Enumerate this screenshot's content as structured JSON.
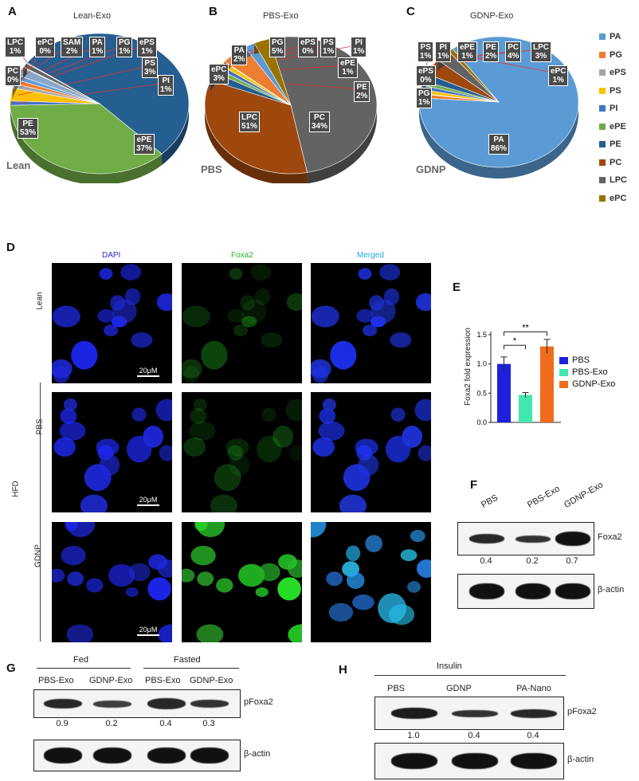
{
  "panels": {
    "A": {
      "letter": "A",
      "title": "Lean-Exo",
      "corner": "Lean"
    },
    "B": {
      "letter": "B",
      "title": "PBS-Exo",
      "corner": "PBS"
    },
    "C": {
      "letter": "C",
      "title": "GDNP-Exo",
      "corner": "GDNP"
    },
    "D": {
      "letter": "D",
      "channels": [
        "DAPI",
        "Foxa2",
        "Merged"
      ],
      "rows": [
        "Lean",
        "PBS",
        "GDNP"
      ],
      "group": "HFD",
      "scale": "20μM"
    },
    "E": {
      "letter": "E",
      "ylabel": "Foxa2 fold expression",
      "sig1": "*",
      "sig2": "**"
    },
    "F": {
      "letter": "F",
      "lanes": [
        "PBS",
        "PBS-Exo",
        "GDNP-Exo"
      ],
      "target": "Foxa2",
      "values": [
        "0.4",
        "0.2",
        "0.7"
      ],
      "control": "β-actin"
    },
    "G": {
      "letter": "G",
      "groups": [
        "Fed",
        "Fasted"
      ],
      "lanes": [
        "PBS-Exo",
        "GDNP-Exo",
        "PBS-Exo",
        "GDNP-Exo"
      ],
      "target": "pFoxa2",
      "values": [
        "0.9",
        "0.2",
        "0.4",
        "0.3"
      ],
      "control": "β-actin"
    },
    "H": {
      "letter": "H",
      "group": "Insulin",
      "lanes": [
        "PBS",
        "GDNP",
        "PA-Nano"
      ],
      "target": "pFoxa2",
      "values": [
        "1.0",
        "0.4",
        "0.4"
      ],
      "control": "β-actin"
    }
  },
  "pie_legend": [
    {
      "label": "PA",
      "color": "#5b9bd5"
    },
    {
      "label": "PG",
      "color": "#ed7d31"
    },
    {
      "label": "ePS",
      "color": "#a5a5a5"
    },
    {
      "label": "PS",
      "color": "#ffc000"
    },
    {
      "label": "PI",
      "color": "#4472c4"
    },
    {
      "label": "ePE",
      "color": "#70ad47"
    },
    {
      "label": "PE",
      "color": "#255e91"
    },
    {
      "label": "PC",
      "color": "#9e480e"
    },
    {
      "label": "LPC",
      "color": "#636363"
    },
    {
      "label": "ePC",
      "color": "#997300"
    }
  ],
  "chart_data": [
    {
      "type": "pie",
      "title": "Lean-Exo",
      "slices": [
        {
          "label": "PE",
          "value": 53,
          "text": "53%"
        },
        {
          "label": "ePE",
          "value": 37,
          "text": "37%"
        },
        {
          "label": "PI",
          "value": 1,
          "text": "1%"
        },
        {
          "label": "PS",
          "value": 3,
          "text": "3%"
        },
        {
          "label": "ePS",
          "value": 1,
          "text": "1%"
        },
        {
          "label": "PG",
          "value": 1,
          "text": "1%"
        },
        {
          "label": "PA",
          "value": 1,
          "text": "1%"
        },
        {
          "label": "SAM",
          "value": 2,
          "text": "2%"
        },
        {
          "label": "ePC",
          "value": 0,
          "text": "0%"
        },
        {
          "label": "LPC",
          "value": 1,
          "text": "1%"
        },
        {
          "label": "PC",
          "value": 0,
          "text": "0%"
        }
      ]
    },
    {
      "type": "pie",
      "title": "PBS-Exo",
      "slices": [
        {
          "label": "LPC",
          "value": 51,
          "text": "51%"
        },
        {
          "label": "PC",
          "value": 34,
          "text": "34%"
        },
        {
          "label": "PE",
          "value": 2,
          "text": "2%"
        },
        {
          "label": "ePE",
          "value": 1,
          "text": "1%"
        },
        {
          "label": "PI",
          "value": 1,
          "text": "1%"
        },
        {
          "label": "PS",
          "value": 1,
          "text": "1%"
        },
        {
          "label": "ePS",
          "value": 0,
          "text": "0%"
        },
        {
          "label": "PG",
          "value": 5,
          "text": "5%"
        },
        {
          "label": "PA",
          "value": 2,
          "text": "2%"
        },
        {
          "label": "ePC",
          "value": 3,
          "text": "3%"
        }
      ]
    },
    {
      "type": "pie",
      "title": "GDNP-Exo",
      "slices": [
        {
          "label": "PA",
          "value": 86,
          "text": "86%"
        },
        {
          "label": "PG",
          "value": 1,
          "text": "1%"
        },
        {
          "label": "ePS",
          "value": 0,
          "text": "0%"
        },
        {
          "label": "PS",
          "value": 1,
          "text": "1%"
        },
        {
          "label": "PI",
          "value": 1,
          "text": "1%"
        },
        {
          "label": "ePE",
          "value": 1,
          "text": "1%"
        },
        {
          "label": "PE",
          "value": 2,
          "text": "2%"
        },
        {
          "label": "PC",
          "value": 4,
          "text": "4%"
        },
        {
          "label": "LPC",
          "value": 3,
          "text": "3%"
        },
        {
          "label": "ePC",
          "value": 1,
          "text": "1%"
        }
      ]
    },
    {
      "type": "bar",
      "categories": [
        "PBS",
        "PBS-Exo",
        "GDNP-Exo"
      ],
      "values": [
        1.0,
        0.47,
        1.3
      ],
      "errors": [
        0.12,
        0.04,
        0.12
      ],
      "colors": [
        "#1f1fe0",
        "#40e8b0",
        "#f06c1c"
      ],
      "ylabel": "Foxa2 fold expression",
      "ylim": [
        0,
        1.5
      ],
      "yticks": [
        "0.0",
        "0.5",
        "1.0",
        "1.5"
      ]
    }
  ]
}
